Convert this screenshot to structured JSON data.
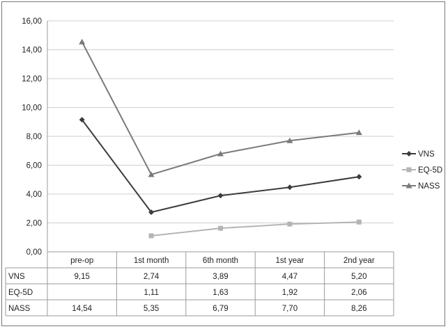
{
  "chart_data": {
    "type": "line",
    "categories": [
      "pre-op",
      "1st month",
      "6th month",
      "1st year",
      "2nd year"
    ],
    "yticks": [
      "0,00",
      "2,00",
      "4,00",
      "6,00",
      "8,00",
      "10,00",
      "12,00",
      "14,00",
      "16,00"
    ],
    "ylim": [
      0,
      16
    ],
    "grid": true,
    "legend_position": "right",
    "series": [
      {
        "name": "VNS",
        "values": [
          9.15,
          2.74,
          3.89,
          4.47,
          5.2
        ],
        "labels": [
          "9,15",
          "2,74",
          "3,89",
          "4,47",
          "5,20"
        ],
        "color": "#3c3c3c",
        "marker": "diamond"
      },
      {
        "name": "EQ-5D",
        "values": [
          null,
          1.11,
          1.63,
          1.92,
          2.06
        ],
        "labels": [
          "",
          "1,11",
          "1,63",
          "1,92",
          "2,06"
        ],
        "color": "#b4b4b4",
        "marker": "square"
      },
      {
        "name": "NASS",
        "values": [
          14.54,
          5.35,
          6.79,
          7.7,
          8.26
        ],
        "labels": [
          "14,54",
          "5,35",
          "6,79",
          "7,70",
          "8,26"
        ],
        "color": "#7a7a7a",
        "marker": "triangle"
      }
    ]
  }
}
